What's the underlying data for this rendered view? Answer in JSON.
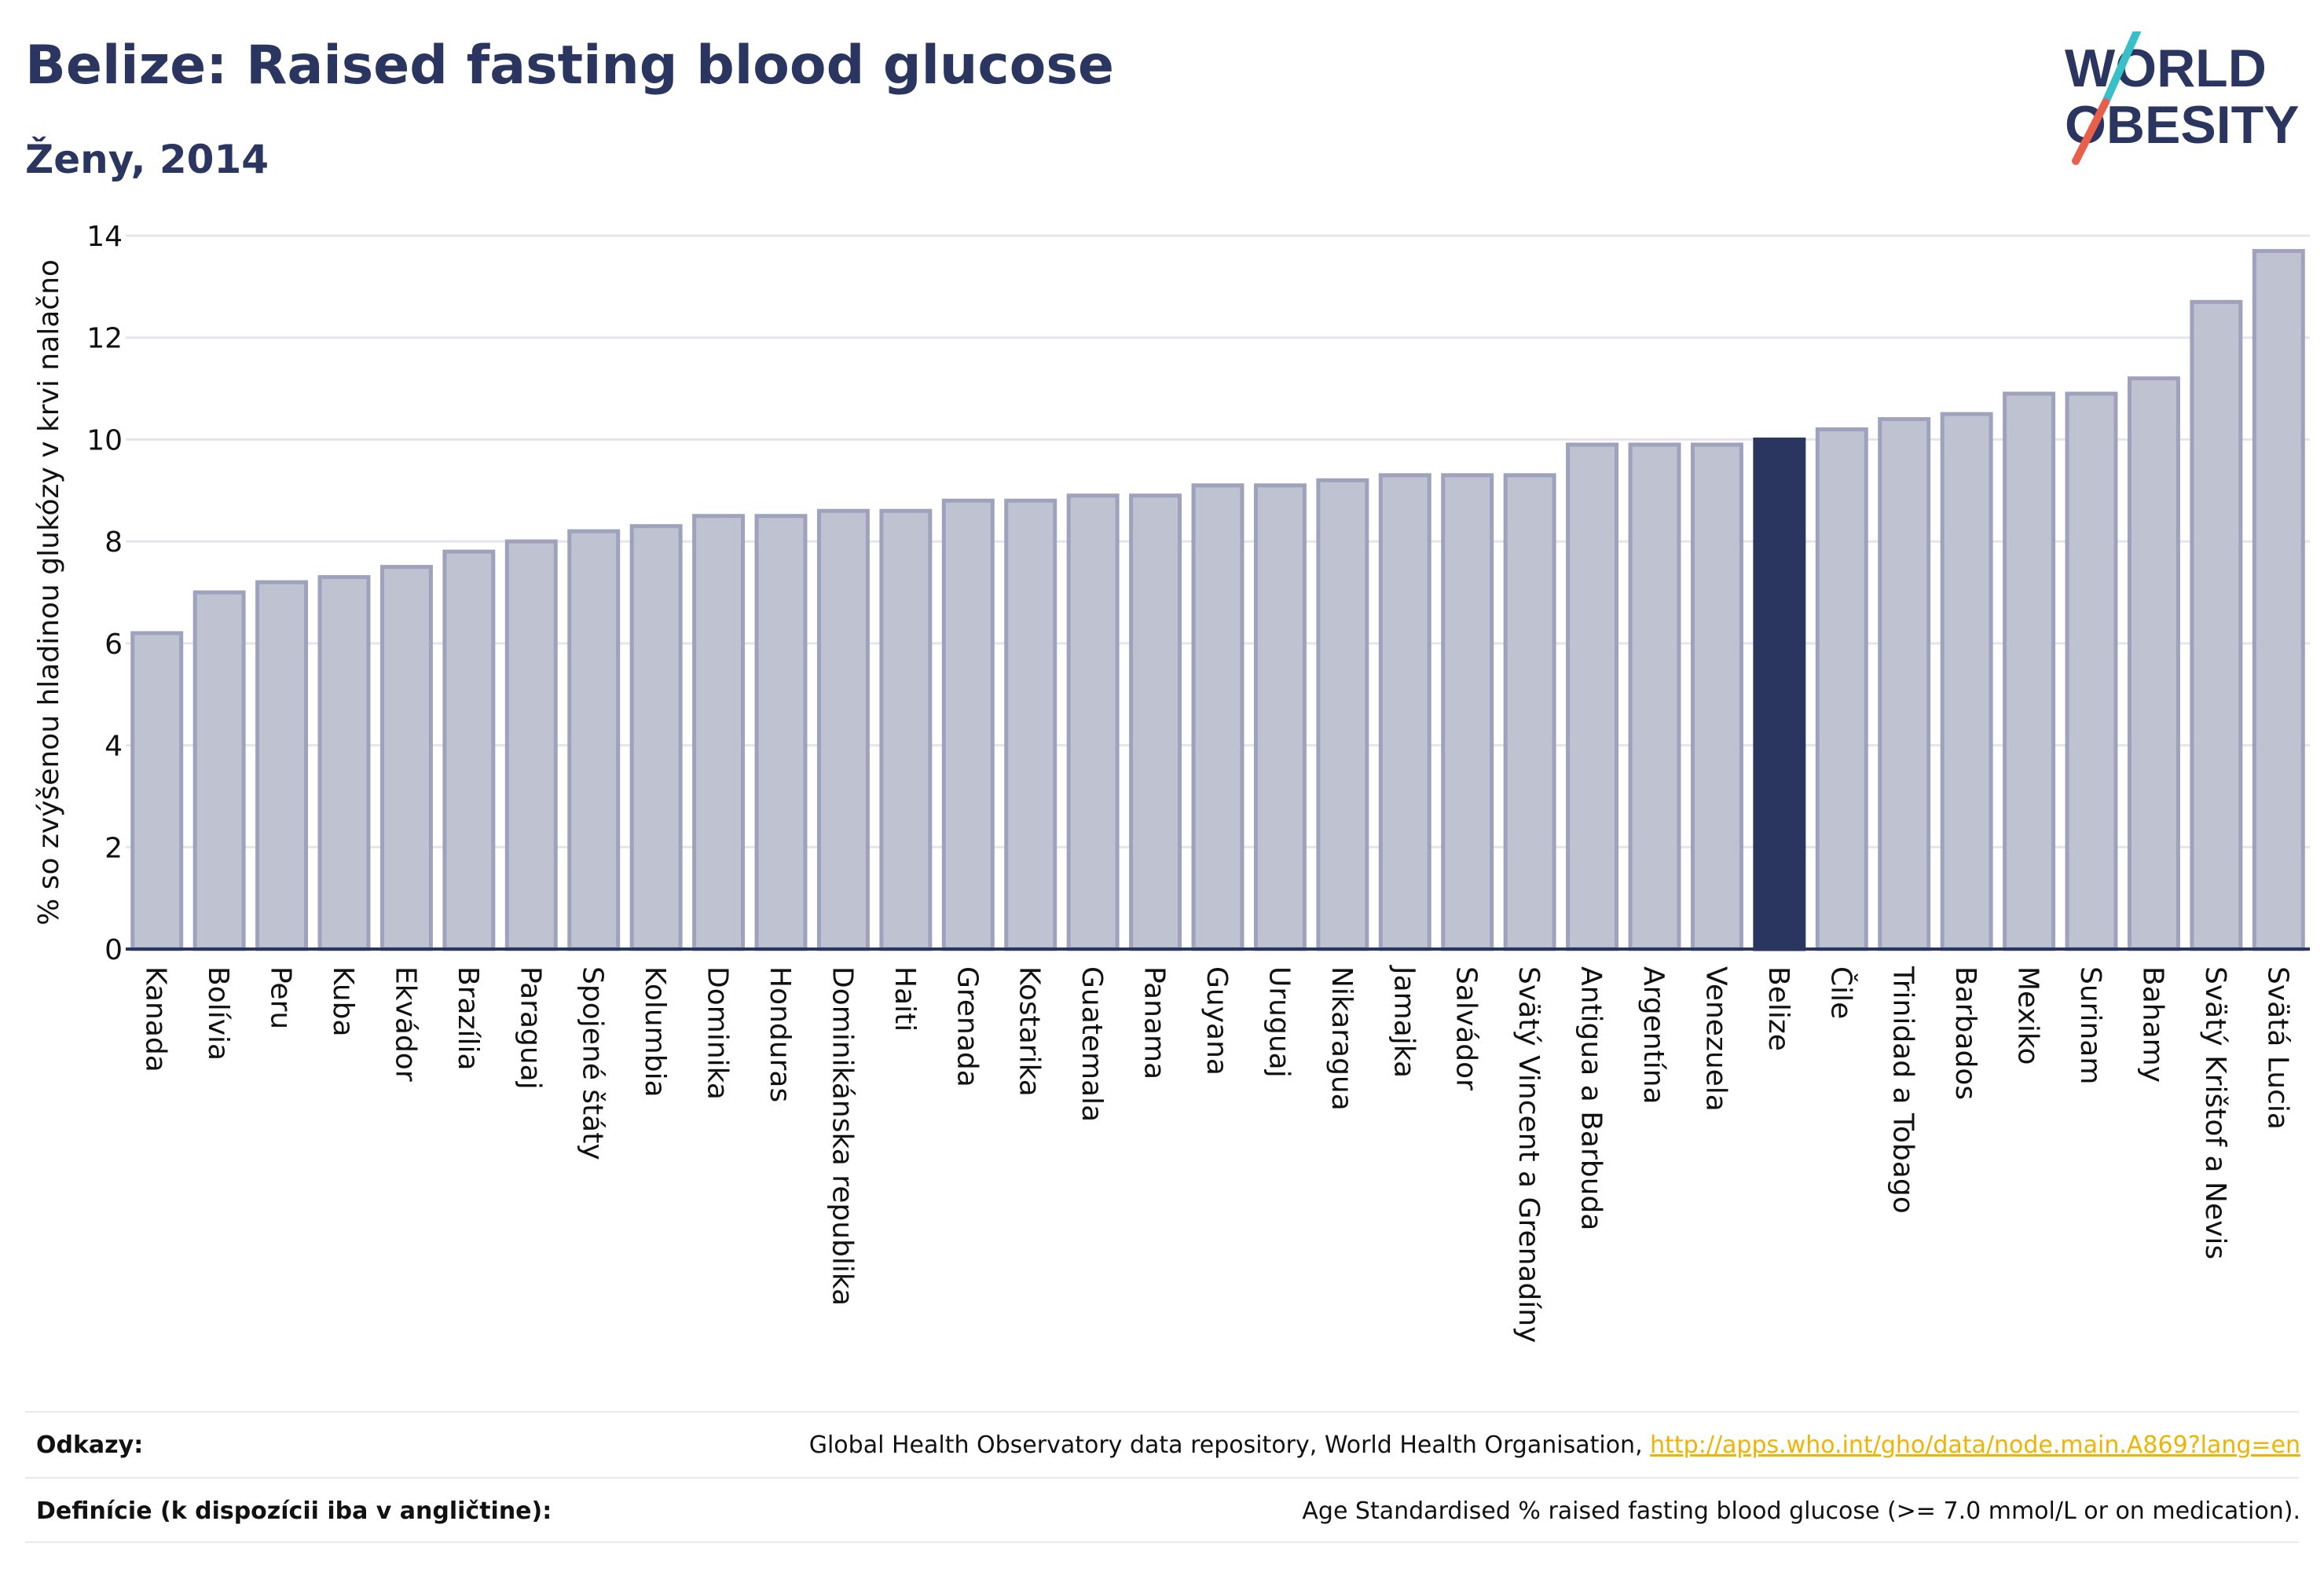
{
  "header": {
    "title": "Belize: Raised fasting blood glucose",
    "subtitle": "Ženy, 2014"
  },
  "logo": {
    "line1": "WORLD",
    "line2": "OBESITY",
    "text_color": "#2a3560",
    "slash_color_top": "#38c0c8",
    "slash_color_bottom": "#e8604c"
  },
  "chart_data": {
    "type": "bar",
    "ylabel": "% so zvýšenou hladinou glukózy v krvi nalačno",
    "xlabel": "",
    "ylim": [
      0,
      14
    ],
    "yticks": [
      0,
      2,
      4,
      6,
      8,
      10,
      12,
      14
    ],
    "grid": true,
    "highlight_category": "Belize",
    "colors": {
      "bar": "#bfc2d0",
      "bar_edge": "#9ea2bc",
      "highlight": "#2a3560",
      "grid": "#e4e5ec",
      "axis": "#2a3560"
    },
    "categories": [
      "Kanada",
      "Bolívia",
      "Peru",
      "Kuba",
      "Ekvádor",
      "Brazília",
      "Paraguaj",
      "Spojené štáty",
      "Kolumbia",
      "Dominika",
      "Honduras",
      "Dominikánska republika",
      "Haiti",
      "Grenada",
      "Kostarika",
      "Guatemala",
      "Panama",
      "Guyana",
      "Uruguaj",
      "Nikaragua",
      "Jamajka",
      "Salvádor",
      "Svätý Vincent a Grenadíny",
      "Antigua a Barbuda",
      "Argentína",
      "Venezuela",
      "Belize",
      "Čile",
      "Trinidad a Tobago",
      "Barbados",
      "Mexiko",
      "Surinam",
      "Bahamy",
      "Svätý Krištof a Nevis",
      "Svätá Lucia"
    ],
    "values": [
      6.2,
      7.0,
      7.2,
      7.3,
      7.5,
      7.8,
      8.0,
      8.2,
      8.3,
      8.5,
      8.5,
      8.6,
      8.6,
      8.8,
      8.8,
      8.9,
      8.9,
      9.1,
      9.1,
      9.2,
      9.3,
      9.3,
      9.3,
      9.9,
      9.9,
      9.9,
      10.0,
      10.2,
      10.4,
      10.5,
      10.9,
      10.9,
      11.2,
      12.7,
      13.7
    ]
  },
  "footer": {
    "sources_label": "Odkazy:",
    "sources_text": "Global Health Observatory data repository, World Health Organisation, ",
    "sources_link": "http://apps.who.int/gho/data/node.main.A869?lang=en",
    "definition_label": "Definície (k dispozícii iba v angličtine):",
    "definition_text": "Age Standardised % raised fasting blood glucose (>= 7.0 mmol/L or on medication)."
  }
}
